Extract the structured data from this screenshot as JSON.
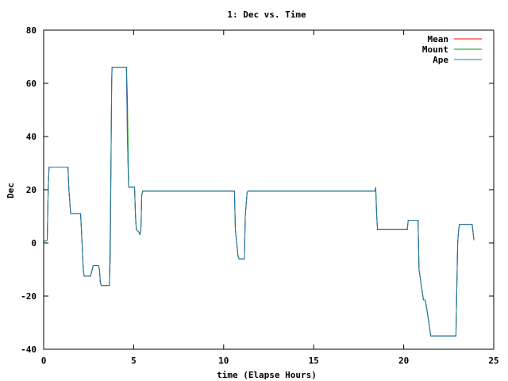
{
  "chart_data": {
    "type": "line",
    "title": "1: Dec vs. Time",
    "xlabel": "time (Elapse Hours)",
    "ylabel": "Dec",
    "xlim": [
      0,
      25
    ],
    "ylim": [
      -40,
      80
    ],
    "xticks": [
      0,
      5,
      10,
      15,
      20,
      25
    ],
    "yticks": [
      -40,
      -20,
      0,
      20,
      40,
      60,
      80
    ],
    "grid": false,
    "legend_position": "top-right",
    "series": [
      {
        "name": "Mean",
        "color": "#ff0000",
        "x": [
          0,
          0.2,
          0.25,
          0.3,
          0.35,
          1.35,
          1.4,
          1.5,
          2.05,
          2.1,
          2.2,
          2.25,
          2.6,
          2.7,
          2.75,
          3.05,
          3.1,
          3.15,
          3.2,
          3.65,
          3.7,
          3.75,
          3.78,
          3.8,
          4.6,
          4.65,
          4.72,
          4.8,
          5.05,
          5.1,
          5.15,
          5.3,
          5.35,
          5.4,
          5.45,
          5.5,
          10.6,
          10.65,
          10.8,
          10.85,
          11.15,
          11.2,
          11.3,
          11.35,
          18.4,
          18.45,
          18.5,
          18.55,
          20.2,
          20.25,
          20.8,
          20.85,
          21.1,
          21.2,
          21.4,
          21.5,
          22.9,
          23.0,
          23.05,
          23.1,
          23.8,
          23.9
        ],
        "y": [
          0.5,
          1,
          20,
          28.5,
          28.5,
          28.5,
          20,
          11,
          11,
          5,
          -10,
          -12.5,
          -12.5,
          -10,
          -8.5,
          -8.5,
          -10,
          -15,
          -16,
          -16,
          -5,
          40,
          60,
          66,
          66,
          40,
          21,
          21,
          21,
          10,
          5,
          4,
          3,
          5,
          18,
          19.5,
          19.5,
          5,
          -5,
          -6,
          -6,
          10,
          19,
          19.5,
          19.5,
          20,
          10,
          5,
          5,
          8.5,
          8.5,
          -10,
          -21.5,
          -21.5,
          -30,
          -35,
          -35,
          0,
          5,
          7,
          7,
          1
        ]
      },
      {
        "name": "Mount",
        "color": "#00a000",
        "x": [
          0,
          0.2,
          0.25,
          0.3,
          0.35,
          1.35,
          1.4,
          1.5,
          2.05,
          2.1,
          2.2,
          2.25,
          2.6,
          2.7,
          2.75,
          3.05,
          3.1,
          3.15,
          3.2,
          3.65,
          3.7,
          3.75,
          3.78,
          3.8,
          4.6,
          4.65,
          4.72,
          4.8,
          5.05,
          5.1,
          5.15,
          5.3,
          5.35,
          5.4,
          5.45,
          5.5,
          10.6,
          10.65,
          10.8,
          10.85,
          11.15,
          11.2,
          11.3,
          11.35,
          18.4,
          18.45,
          18.5,
          18.55,
          20.2,
          20.25,
          20.8,
          20.85,
          21.1,
          21.2,
          21.4,
          21.5,
          22.9,
          23.0,
          23.05,
          23.1,
          23.8,
          23.9
        ],
        "y": [
          0.5,
          1,
          20,
          28.5,
          28.5,
          28.5,
          20,
          11,
          11,
          5,
          -10,
          -12.5,
          -12.5,
          -10,
          -8.5,
          -8.5,
          -10,
          -15,
          -16,
          -16,
          5,
          40,
          62,
          66,
          66,
          55,
          21,
          21,
          21,
          10,
          5,
          4,
          3,
          5,
          18,
          19.5,
          19.5,
          5,
          -5,
          -6,
          -6,
          10,
          19,
          19.5,
          19.5,
          21,
          10,
          5,
          5,
          8.5,
          8.5,
          -10,
          -21.5,
          -21.5,
          -30,
          -35,
          -35,
          0,
          5,
          7,
          7,
          1
        ]
      },
      {
        "name": "Ape",
        "color": "#1f77b4",
        "x": [
          0,
          0.2,
          0.25,
          0.3,
          0.35,
          1.35,
          1.4,
          1.5,
          2.05,
          2.1,
          2.2,
          2.25,
          2.6,
          2.7,
          2.75,
          3.05,
          3.1,
          3.15,
          3.2,
          3.65,
          3.7,
          3.75,
          3.78,
          3.8,
          4.6,
          4.65,
          4.72,
          4.8,
          5.05,
          5.1,
          5.15,
          5.3,
          5.35,
          5.4,
          5.45,
          5.5,
          10.6,
          10.65,
          10.8,
          10.85,
          11.15,
          11.2,
          11.3,
          11.35,
          18.4,
          18.45,
          18.5,
          18.55,
          20.2,
          20.25,
          20.8,
          20.85,
          21.1,
          21.2,
          21.4,
          21.5,
          22.9,
          23.0,
          23.05,
          23.1,
          23.8,
          23.9
        ],
        "y": [
          0.5,
          1,
          20,
          28.5,
          28.5,
          28.5,
          20,
          11,
          11,
          5,
          -10,
          -12.5,
          -12.5,
          -10,
          -8.5,
          -8.5,
          -10,
          -15,
          -16,
          -16,
          -5,
          40,
          60,
          66,
          66,
          40,
          21,
          21,
          21,
          10,
          5,
          4,
          3,
          5,
          18,
          19.5,
          19.5,
          5,
          -5,
          -6,
          -6,
          10,
          19,
          19.5,
          19.5,
          20,
          10,
          5,
          5,
          8.5,
          8.5,
          -10,
          -21.5,
          -21.5,
          -30,
          -35,
          -35,
          0,
          5,
          7,
          7,
          1
        ]
      }
    ]
  }
}
